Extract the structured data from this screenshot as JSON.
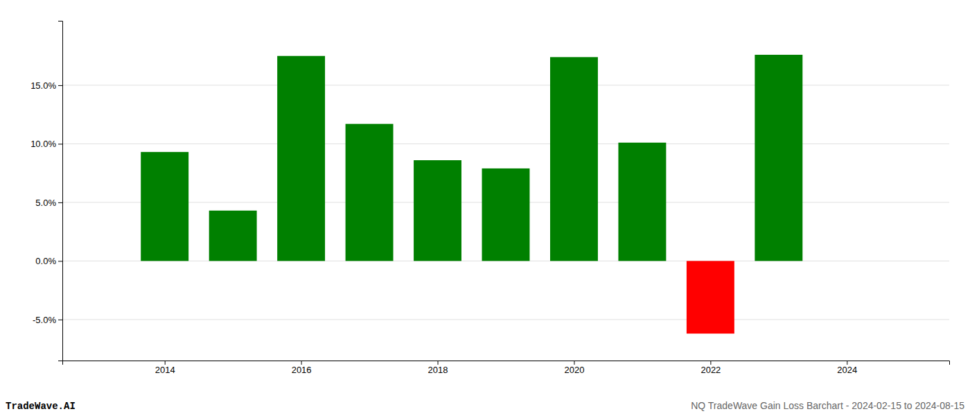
{
  "chart_data": {
    "type": "bar",
    "title": "NQ TradeWave Gain Loss Barchart - 2024-02-15 to 2024-08-15",
    "subtitle": "TradeWave.AI",
    "x": [
      2014,
      2015,
      2016,
      2017,
      2018,
      2019,
      2020,
      2021,
      2022,
      2023
    ],
    "values": [
      0.093,
      0.043,
      0.175,
      0.117,
      0.086,
      0.079,
      0.174,
      0.101,
      -0.062,
      0.176
    ],
    "colors": [
      "#008000",
      "#008000",
      "#008000",
      "#008000",
      "#008000",
      "#008000",
      "#008000",
      "#008000",
      "#ff0000",
      "#008000"
    ],
    "xlim": [
      2012.5,
      2025.5
    ],
    "xticks": [
      2014,
      2016,
      2018,
      2020,
      2022,
      2024
    ],
    "ylim": [
      -0.085,
      0.205
    ],
    "yticks": [
      {
        "value": -0.05,
        "label": "-5.0%"
      },
      {
        "value": 0.0,
        "label": "0.0%"
      },
      {
        "value": 0.05,
        "label": "5.0%"
      },
      {
        "value": 0.1,
        "label": "10.0%"
      },
      {
        "value": 0.15,
        "label": "15.0%"
      }
    ],
    "grid": true
  }
}
